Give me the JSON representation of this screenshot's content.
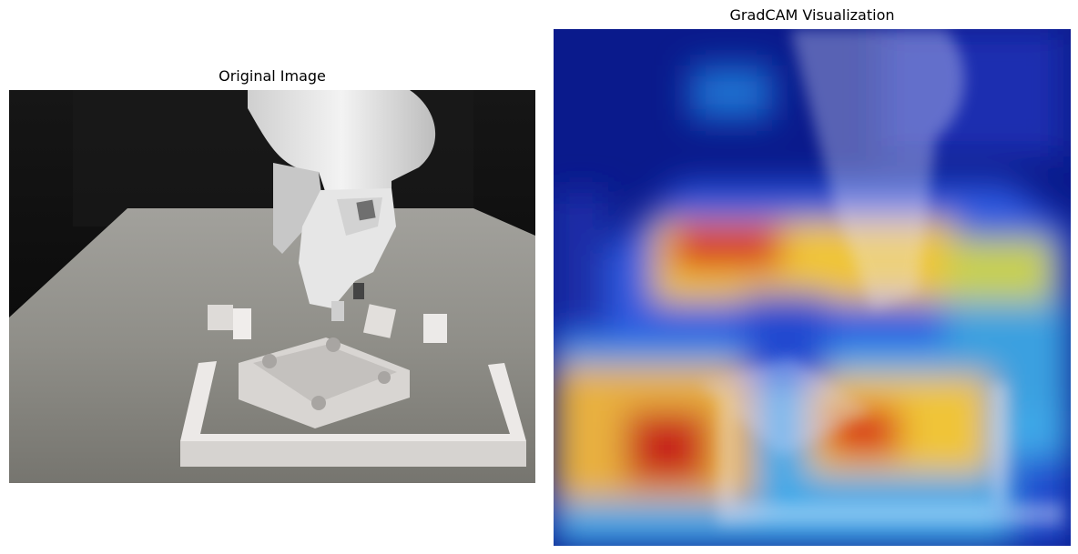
{
  "panels": [
    {
      "title": "Original Image"
    },
    {
      "title": "GradCAM Visualization"
    }
  ],
  "colors": {
    "background": "#ffffff",
    "studio_dark": "#0b0b0b",
    "table_gray": "#8e8d87",
    "part_white": "#e9e6e4",
    "heatmap_low": "#0a1a8c",
    "heatmap_high": "#c8261c"
  }
}
